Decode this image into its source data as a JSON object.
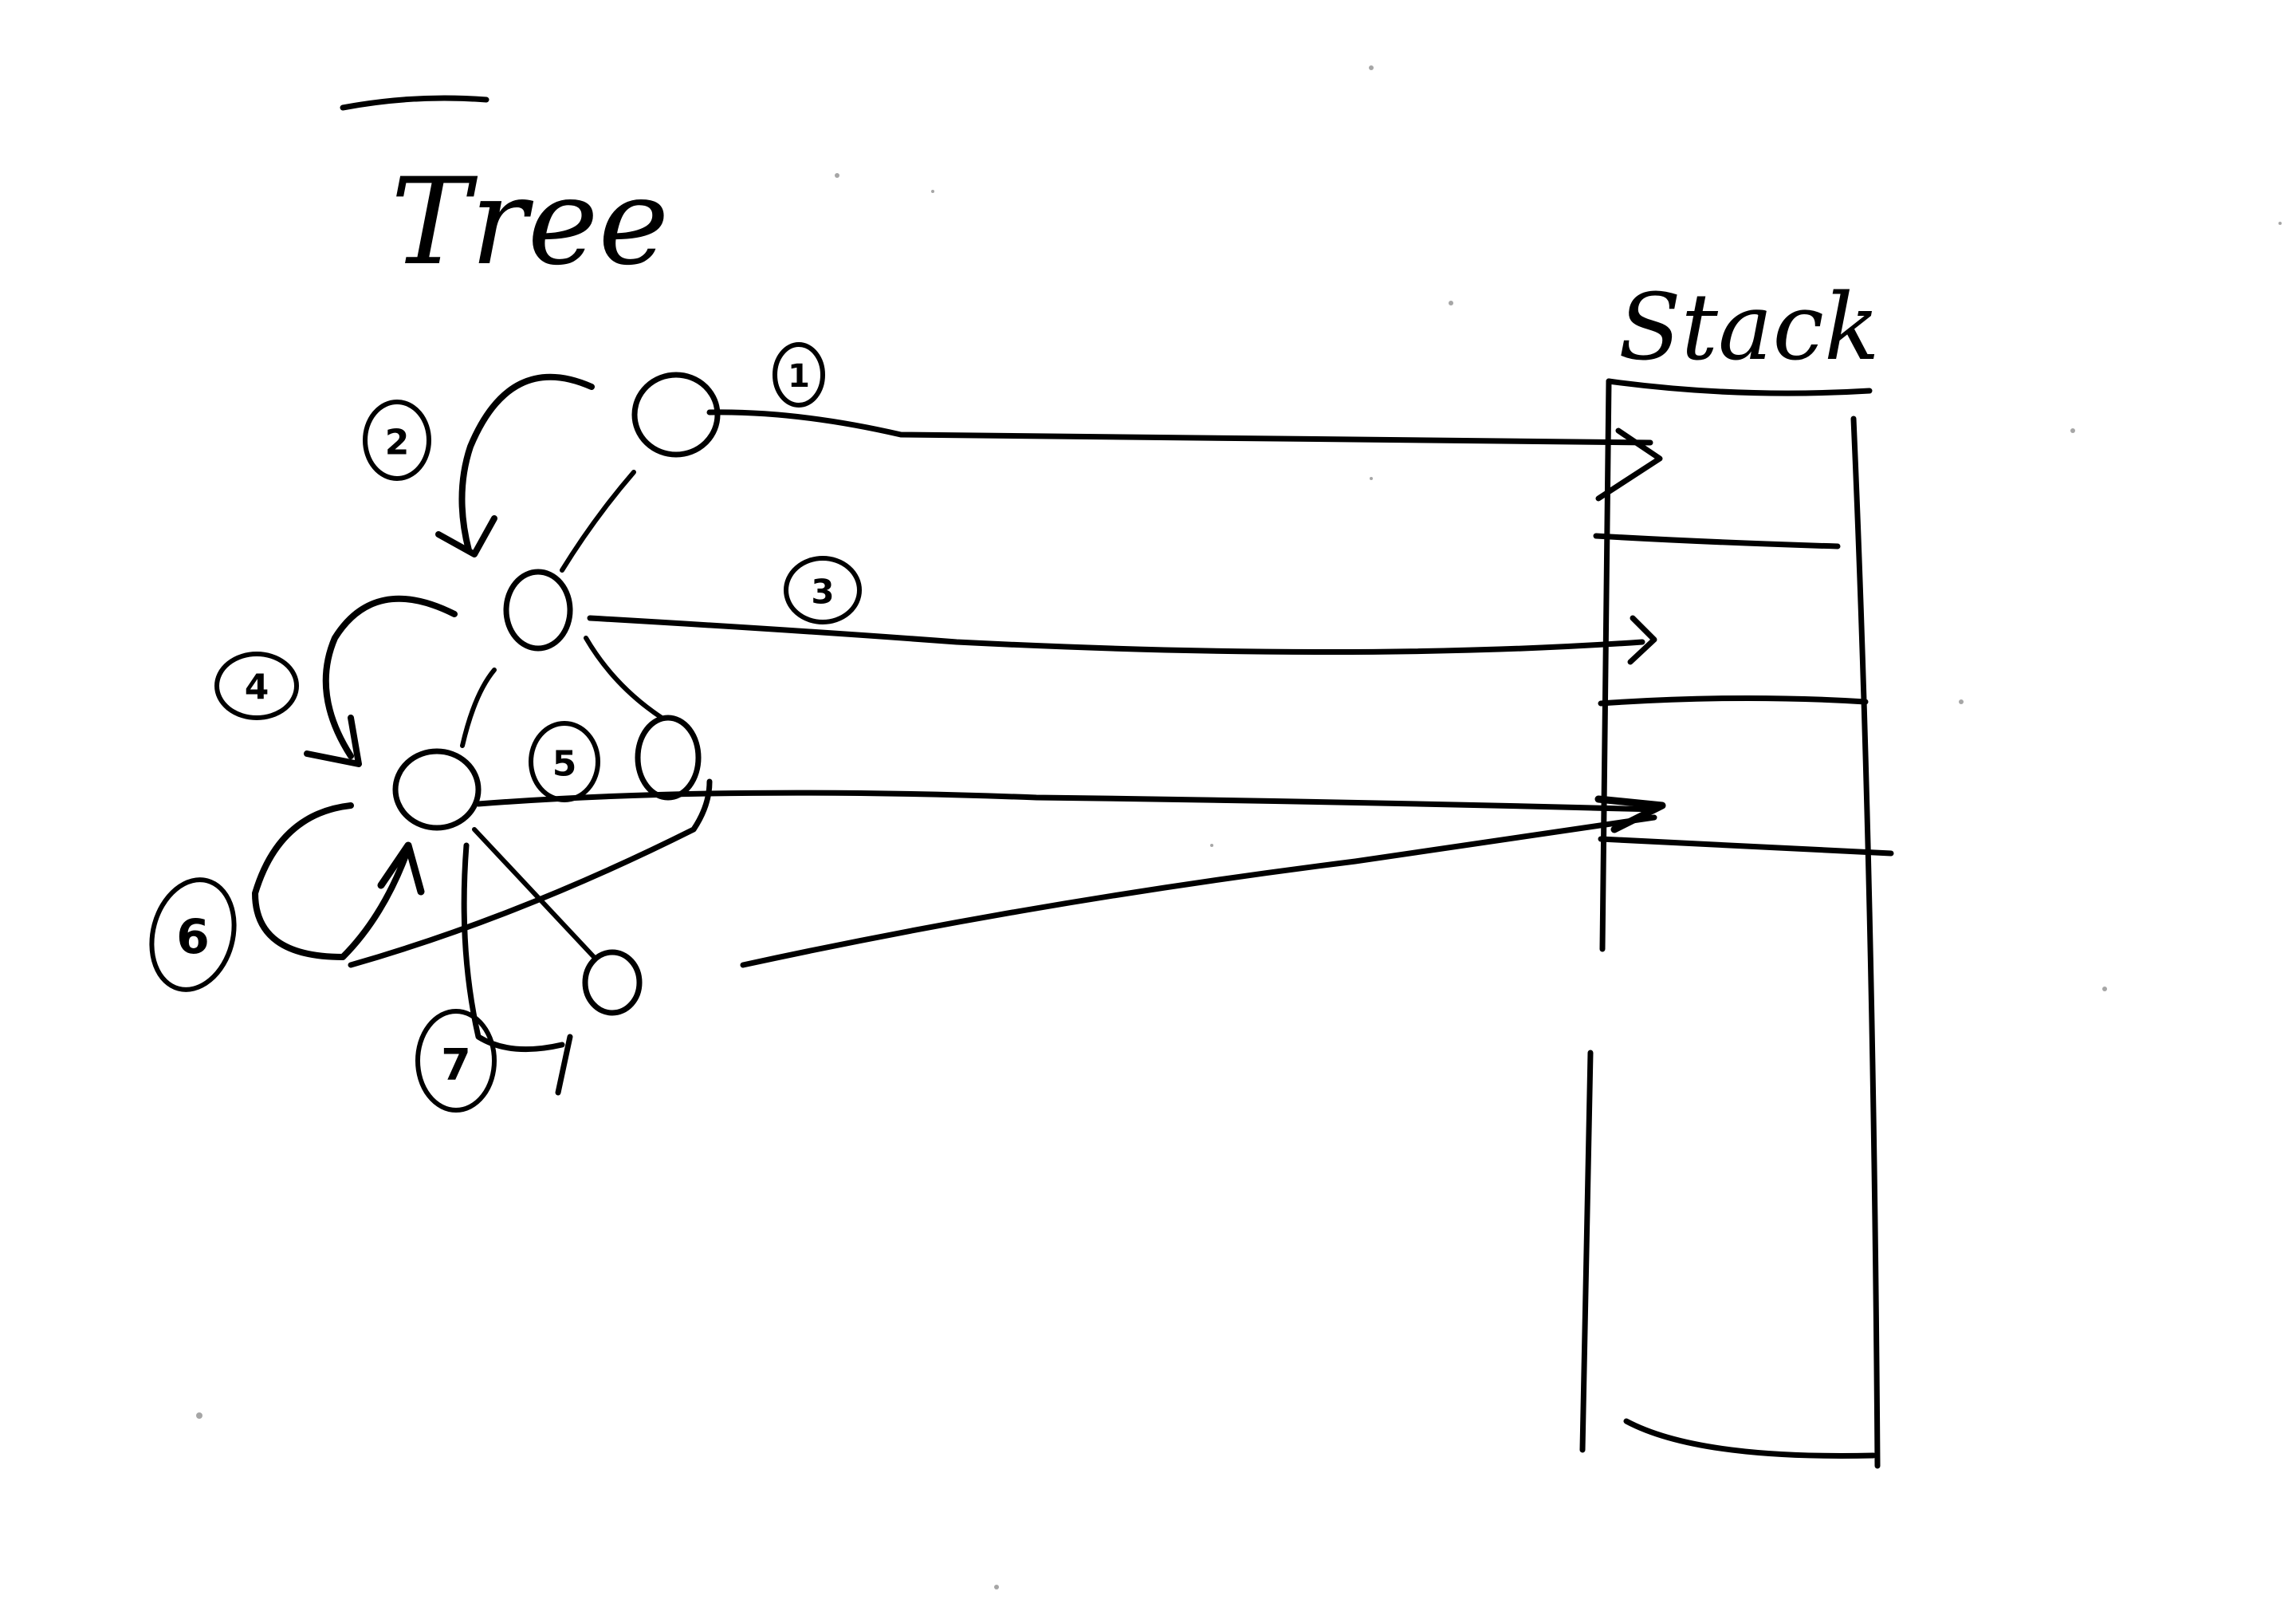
{
  "tree": {
    "title": "Tree",
    "nodes": [
      {
        "id": "root"
      },
      {
        "id": "n2"
      },
      {
        "id": "n3"
      },
      {
        "id": "n4"
      },
      {
        "id": "n5"
      }
    ],
    "step_labels": [
      "1",
      "2",
      "3",
      "4",
      "5",
      "6",
      "7"
    ]
  },
  "stack": {
    "title": "Stack"
  },
  "colors": {
    "ink": "#000000",
    "paper": "#ffffff"
  }
}
